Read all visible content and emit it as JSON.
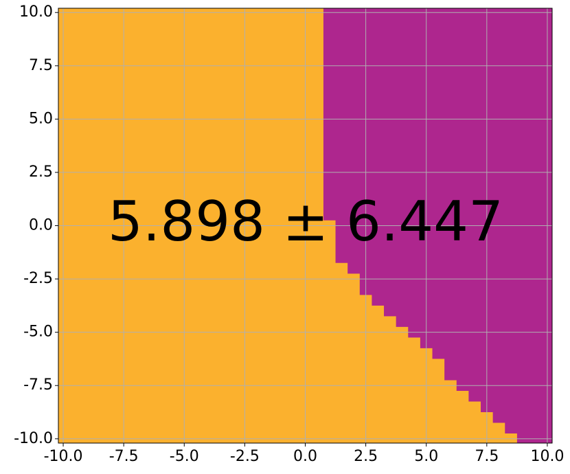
{
  "chart_data": {
    "type": "decision-region",
    "annotation": "5.898 ± 6.447",
    "colors": [
      "#fbb12e",
      "#ae268e"
    ],
    "x": [
      0.75,
      0.75,
      1.25,
      1.25,
      1.75,
      1.75,
      2.25,
      2.25,
      2.75,
      2.75,
      3.25,
      3.25,
      3.75,
      3.75,
      4.25,
      4.25,
      4.75,
      4.75,
      5.25,
      5.25,
      5.75,
      5.75,
      6.25,
      6.25,
      6.75,
      6.75,
      7.25,
      7.25,
      7.75,
      7.75,
      8.25,
      8.25,
      8.75,
      8.75
    ],
    "y": [
      10.2,
      0.25,
      0.25,
      -1.75,
      -1.75,
      -2.25,
      -2.25,
      -3.25,
      -3.25,
      -3.75,
      -3.75,
      -4.25,
      -4.25,
      -4.75,
      -4.75,
      -5.25,
      -5.25,
      -5.75,
      -5.75,
      -6.25,
      -6.25,
      -7.25,
      -7.25,
      -7.75,
      -7.75,
      -8.25,
      -8.25,
      -8.75,
      -8.75,
      -9.25,
      -9.25,
      -9.75,
      -9.75,
      -10.2
    ],
    "xlim": [
      -10.2,
      10.2
    ],
    "ylim": [
      -10.2,
      10.2
    ],
    "xticks": [
      {
        "value": -10,
        "label": "-10.0"
      },
      {
        "value": -7.5,
        "label": "-7.5"
      },
      {
        "value": -5,
        "label": "-5.0"
      },
      {
        "value": -2.5,
        "label": "-2.5"
      },
      {
        "value": 0,
        "label": "0.0"
      },
      {
        "value": 2.5,
        "label": "2.5"
      },
      {
        "value": 5,
        "label": "5.0"
      },
      {
        "value": 7.5,
        "label": "7.5"
      },
      {
        "value": 10,
        "label": "10.0"
      }
    ],
    "yticks": [
      {
        "value": -10,
        "label": "-10.0"
      },
      {
        "value": -7.5,
        "label": "-7.5"
      },
      {
        "value": -5,
        "label": "-5.0"
      },
      {
        "value": -2.5,
        "label": "-2.5"
      },
      {
        "value": 0,
        "label": "0.0"
      },
      {
        "value": 2.5,
        "label": "2.5"
      },
      {
        "value": 5,
        "label": "5.0"
      },
      {
        "value": 7.5,
        "label": "7.5"
      },
      {
        "value": 10,
        "label": "10.0"
      }
    ],
    "grid": true
  }
}
